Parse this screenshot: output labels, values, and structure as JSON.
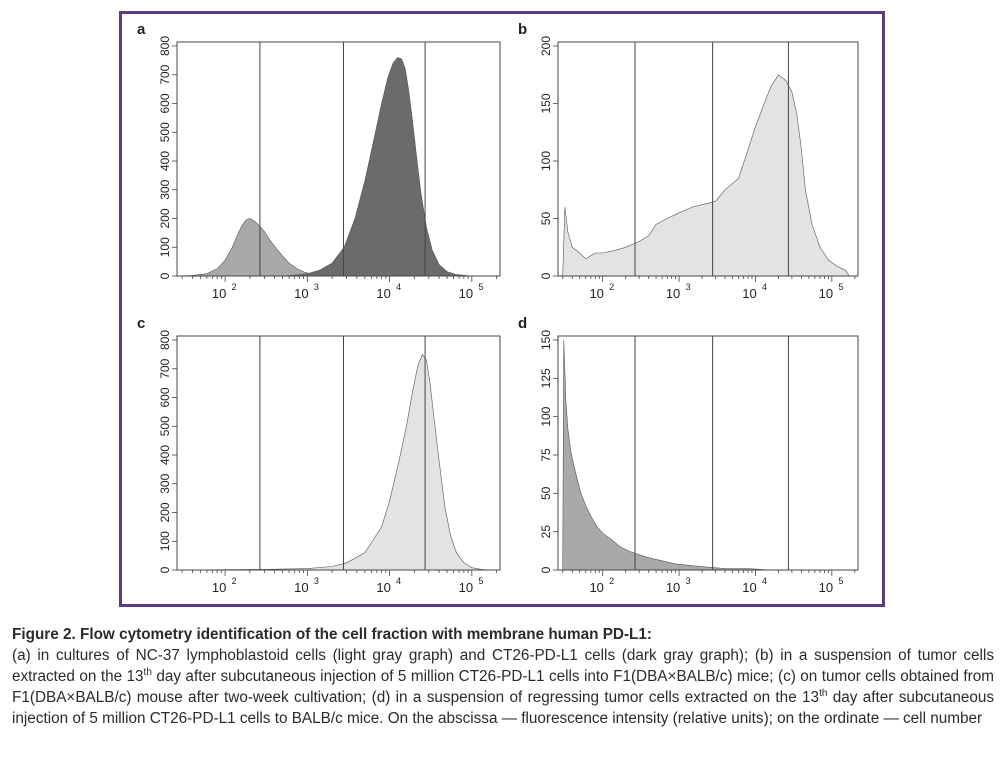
{
  "figure": {
    "frame_color": "#5b3a86",
    "panels": [
      {
        "label": "a",
        "chart_data": {
          "type": "area",
          "x_scale": "log",
          "xlim": [
            26,
            220000
          ],
          "ylim": [
            0,
            800
          ],
          "yticks": [
            0,
            100,
            200,
            300,
            400,
            500,
            600,
            700,
            800
          ],
          "xtick_labels": [
            "10",
            "10",
            "10",
            "10"
          ],
          "xtick_exponents": [
            "2",
            "3",
            "4",
            "5"
          ],
          "gates": [
            265,
            2750,
            27000
          ],
          "series": [
            {
              "fill": "#a9a9a9",
              "points": [
                [
                  26,
                  0
                ],
                [
                  40,
                  2
                ],
                [
                  60,
                  8
                ],
                [
                  80,
                  25
                ],
                [
                  100,
                  55
                ],
                [
                  120,
                  95
                ],
                [
                  140,
                  140
                ],
                [
                  160,
                  175
                ],
                [
                  180,
                  195
                ],
                [
                  200,
                  200
                ],
                [
                  230,
                  190
                ],
                [
                  260,
                  175
                ],
                [
                  300,
                  155
                ],
                [
                  350,
                  125
                ],
                [
                  420,
                  95
                ],
                [
                  500,
                  70
                ],
                [
                  600,
                  45
                ],
                [
                  750,
                  25
                ],
                [
                  950,
                  12
                ],
                [
                  1200,
                  5
                ],
                [
                  1600,
                  2
                ],
                [
                  2500,
                  0
                ]
              ]
            },
            {
              "fill": "#6b6b6b",
              "points": [
                [
                  500,
                  0
                ],
                [
                  700,
                  3
                ],
                [
                  1000,
                  8
                ],
                [
                  1400,
                  20
                ],
                [
                  2000,
                  45
                ],
                [
                  2800,
                  100
                ],
                [
                  3800,
                  200
                ],
                [
                  5000,
                  330
                ],
                [
                  6500,
                  480
                ],
                [
                  8000,
                  600
                ],
                [
                  9500,
                  690
                ],
                [
                  11000,
                  740
                ],
                [
                  12500,
                  760
                ],
                [
                  14000,
                  755
                ],
                [
                  15500,
                  720
                ],
                [
                  17000,
                  650
                ],
                [
                  19000,
                  540
                ],
                [
                  21000,
                  430
                ],
                [
                  24000,
                  290
                ],
                [
                  28000,
                  170
                ],
                [
                  33000,
                  90
                ],
                [
                  40000,
                  40
                ],
                [
                  50000,
                  15
                ],
                [
                  65000,
                  5
                ],
                [
                  90000,
                  1
                ],
                [
                  130000,
                  0
                ]
              ]
            }
          ]
        }
      },
      {
        "label": "b",
        "chart_data": {
          "type": "area",
          "x_scale": "log",
          "xlim": [
            26,
            220000
          ],
          "ylim": [
            0,
            200
          ],
          "yticks": [
            0,
            50,
            100,
            150,
            200
          ],
          "xtick_labels": [
            "10",
            "10",
            "10",
            "10"
          ],
          "xtick_exponents": [
            "2",
            "3",
            "4",
            "5"
          ],
          "gates": [
            265,
            2750,
            27000
          ],
          "series": [
            {
              "fill": "#e3e3e3",
              "points": [
                [
                  30,
                  0
                ],
                [
                  32,
                  60
                ],
                [
                  35,
                  38
                ],
                [
                  40,
                  25
                ],
                [
                  50,
                  20
                ],
                [
                  60,
                  15
                ],
                [
                  80,
                  20
                ],
                [
                  100,
                  20
                ],
                [
                  140,
                  22
                ],
                [
                  200,
                  25
                ],
                [
                  300,
                  30
                ],
                [
                  400,
                  35
                ],
                [
                  500,
                  45
                ],
                [
                  700,
                  50
                ],
                [
                  1000,
                  55
                ],
                [
                  1500,
                  60
                ],
                [
                  2000,
                  62
                ],
                [
                  3000,
                  65
                ],
                [
                  4000,
                  75
                ],
                [
                  6000,
                  85
                ],
                [
                  8000,
                  110
                ],
                [
                  10000,
                  130
                ],
                [
                  13000,
                  150
                ],
                [
                  16000,
                  165
                ],
                [
                  20000,
                  175
                ],
                [
                  25000,
                  170
                ],
                [
                  30000,
                  160
                ],
                [
                  35000,
                  140
                ],
                [
                  40000,
                  110
                ],
                [
                  45000,
                  75
                ],
                [
                  55000,
                  45
                ],
                [
                  70000,
                  25
                ],
                [
                  90000,
                  14
                ],
                [
                  120000,
                  8
                ],
                [
                  150000,
                  5
                ],
                [
                  170000,
                  0
                ]
              ]
            }
          ]
        }
      },
      {
        "label": "c",
        "chart_data": {
          "type": "area",
          "x_scale": "log",
          "xlim": [
            26,
            220000
          ],
          "ylim": [
            0,
            800
          ],
          "yticks": [
            0,
            100,
            200,
            300,
            400,
            500,
            600,
            700,
            800
          ],
          "xtick_labels": [
            "10",
            "10",
            "10",
            "10"
          ],
          "xtick_exponents": [
            "2",
            "3",
            "4",
            "5"
          ],
          "gates": [
            265,
            2750,
            27000
          ],
          "series": [
            {
              "fill": "#e3e3e3",
              "points": [
                [
                  26,
                  0
                ],
                [
                  300,
                  2
                ],
                [
                  1000,
                  5
                ],
                [
                  2000,
                  12
                ],
                [
                  3000,
                  25
                ],
                [
                  5000,
                  60
                ],
                [
                  8000,
                  150
                ],
                [
                  10000,
                  240
                ],
                [
                  13000,
                  380
                ],
                [
                  16000,
                  500
                ],
                [
                  19000,
                  620
                ],
                [
                  22000,
                  710
                ],
                [
                  25000,
                  750
                ],
                [
                  28000,
                  730
                ],
                [
                  31000,
                  650
                ],
                [
                  35000,
                  520
                ],
                [
                  40000,
                  380
                ],
                [
                  47000,
                  220
                ],
                [
                  55000,
                  120
                ],
                [
                  65000,
                  60
                ],
                [
                  80000,
                  25
                ],
                [
                  100000,
                  8
                ],
                [
                  130000,
                  2
                ],
                [
                  160000,
                  0
                ]
              ]
            }
          ]
        }
      },
      {
        "label": "d",
        "chart_data": {
          "type": "area",
          "x_scale": "log",
          "xlim": [
            26,
            220000
          ],
          "ylim": [
            0,
            150
          ],
          "yticks": [
            0,
            25,
            50,
            75,
            100,
            125,
            150
          ],
          "xtick_labels": [
            "10",
            "10",
            "10",
            "10"
          ],
          "xtick_exponents": [
            "2",
            "3",
            "4",
            "5"
          ],
          "gates": [
            265,
            2750,
            27000
          ],
          "series": [
            {
              "fill": "#a9a9a9",
              "points": [
                [
                  30,
                  0
                ],
                [
                  31,
                  150
                ],
                [
                  33,
                  110
                ],
                [
                  35,
                  92
                ],
                [
                  38,
                  78
                ],
                [
                  42,
                  68
                ],
                [
                  46,
                  60
                ],
                [
                  52,
                  50
                ],
                [
                  60,
                  42
                ],
                [
                  70,
                  35
                ],
                [
                  85,
                  28
                ],
                [
                  100,
                  24
                ],
                [
                  130,
                  20
                ],
                [
                  170,
                  15
                ],
                [
                  230,
                  12
                ],
                [
                  300,
                  10
                ],
                [
                  400,
                  8
                ],
                [
                  600,
                  6
                ],
                [
                  900,
                  4
                ],
                [
                  1400,
                  3
                ],
                [
                  2200,
                  2
                ],
                [
                  4000,
                  1
                ],
                [
                  8000,
                  1
                ],
                [
                  15000,
                  0
                ],
                [
                  30000,
                  0
                ]
              ]
            }
          ]
        }
      }
    ]
  },
  "caption": {
    "title": "Figure 2. Flow cytometry identification of the cell fraction with membrane human PD-L1:",
    "body_parts": [
      "(a) in cultures of NC-37 lymphoblastoid cells (light gray graph) and CT26-PD-L1 cells (dark gray graph); (b) in a suspension of tumor cells extracted on the 13",
      "th",
      " day after subcutaneous injection of 5 million CT26-PD-L1 cells into F1(DBA×BALB/c) mice; (c) on tumor cells obtained from F1(DBA×BALB/c) mouse after two-week cultivation; (d) in a suspension of regressing tumor cells extracted on the 13",
      "th",
      " day after subcutaneous injection of 5 million CT26-PD-L1 cells to BALB/c mice. On the abscissa — fluorescence intensity (relative units); on the ordinate — cell number"
    ]
  }
}
